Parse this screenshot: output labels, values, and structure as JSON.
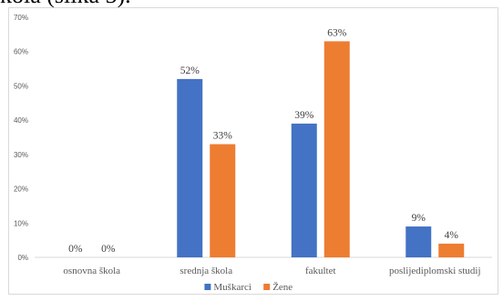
{
  "page": {
    "top_text": "kola (slika 5)."
  },
  "chart_data": {
    "type": "bar",
    "categories": [
      "osnovna škola",
      "srednja škola",
      "fakultet",
      "poslijediplomski studij"
    ],
    "series": [
      {
        "name": "Muškarci",
        "values": [
          0,
          52,
          39,
          9
        ],
        "labels": [
          "0%",
          "52%",
          "39%",
          "9%"
        ],
        "color": "#4472c4"
      },
      {
        "name": "Žene",
        "values": [
          0,
          33,
          63,
          4
        ],
        "labels": [
          "0%",
          "33%",
          "63%",
          "4%"
        ],
        "color": "#ed7d31"
      }
    ],
    "ylim": [
      0,
      70
    ],
    "yticks": [
      0,
      10,
      20,
      30,
      40,
      50,
      60,
      70
    ],
    "ytick_labels": [
      "0%",
      "10%",
      "20%",
      "30%",
      "40%",
      "50%",
      "60%",
      "70%"
    ],
    "grid": false,
    "legend": "bottom-center"
  }
}
